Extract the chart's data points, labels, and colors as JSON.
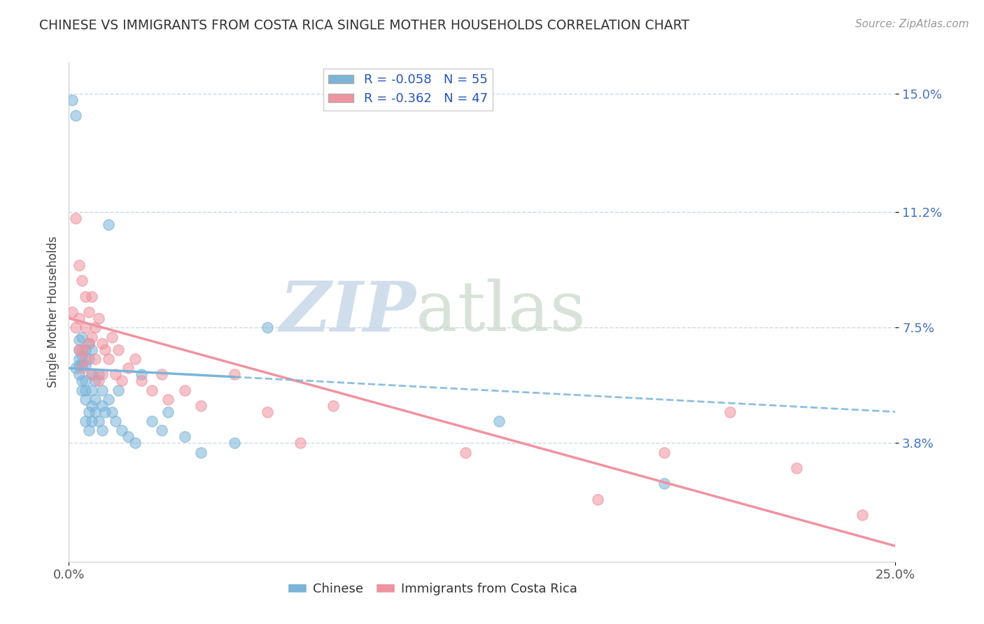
{
  "title": "CHINESE VS IMMIGRANTS FROM COSTA RICA SINGLE MOTHER HOUSEHOLDS CORRELATION CHART",
  "source_text": "Source: ZipAtlas.com",
  "ylabel": "Single Mother Households",
  "xlim": [
    0.0,
    0.25
  ],
  "ylim": [
    0.0,
    0.16
  ],
  "x_tick_labels": [
    "0.0%",
    "25.0%"
  ],
  "y_tick_positions": [
    0.038,
    0.075,
    0.112,
    0.15
  ],
  "y_tick_labels": [
    "3.8%",
    "7.5%",
    "11.2%",
    "15.0%"
  ],
  "chinese_color": "#7ab4d8",
  "costa_rica_color": "#f093a0",
  "chinese_R": -0.058,
  "chinese_N": 55,
  "costa_rica_R": -0.362,
  "costa_rica_N": 47,
  "watermark_zip_color": "#c8d8e8",
  "watermark_atlas_color": "#c8d8c8",
  "background_color": "#ffffff",
  "grid_color": "#c8d4e0",
  "chinese_x": [
    0.001,
    0.002,
    0.002,
    0.003,
    0.003,
    0.003,
    0.003,
    0.003,
    0.004,
    0.004,
    0.004,
    0.004,
    0.004,
    0.005,
    0.005,
    0.005,
    0.005,
    0.005,
    0.005,
    0.006,
    0.006,
    0.006,
    0.006,
    0.007,
    0.007,
    0.007,
    0.007,
    0.007,
    0.008,
    0.008,
    0.008,
    0.009,
    0.009,
    0.01,
    0.01,
    0.01,
    0.011,
    0.012,
    0.012,
    0.013,
    0.014,
    0.015,
    0.016,
    0.018,
    0.02,
    0.022,
    0.025,
    0.028,
    0.03,
    0.035,
    0.04,
    0.05,
    0.06,
    0.13,
    0.18
  ],
  "chinese_y": [
    0.148,
    0.062,
    0.143,
    0.068,
    0.071,
    0.063,
    0.065,
    0.06,
    0.072,
    0.063,
    0.058,
    0.055,
    0.066,
    0.068,
    0.055,
    0.052,
    0.063,
    0.058,
    0.045,
    0.07,
    0.065,
    0.048,
    0.042,
    0.068,
    0.06,
    0.055,
    0.05,
    0.045,
    0.058,
    0.052,
    0.048,
    0.06,
    0.045,
    0.055,
    0.05,
    0.042,
    0.048,
    0.108,
    0.052,
    0.048,
    0.045,
    0.055,
    0.042,
    0.04,
    0.038,
    0.06,
    0.045,
    0.042,
    0.048,
    0.04,
    0.035,
    0.038,
    0.075,
    0.045,
    0.025
  ],
  "costa_rica_x": [
    0.001,
    0.002,
    0.002,
    0.003,
    0.003,
    0.003,
    0.004,
    0.004,
    0.004,
    0.005,
    0.005,
    0.005,
    0.006,
    0.006,
    0.007,
    0.007,
    0.007,
    0.008,
    0.008,
    0.009,
    0.009,
    0.01,
    0.01,
    0.011,
    0.012,
    0.013,
    0.014,
    0.015,
    0.016,
    0.018,
    0.02,
    0.022,
    0.025,
    0.028,
    0.03,
    0.035,
    0.04,
    0.05,
    0.06,
    0.07,
    0.08,
    0.12,
    0.16,
    0.18,
    0.2,
    0.22,
    0.24
  ],
  "costa_rica_y": [
    0.08,
    0.11,
    0.075,
    0.095,
    0.068,
    0.078,
    0.09,
    0.068,
    0.062,
    0.085,
    0.075,
    0.065,
    0.08,
    0.07,
    0.085,
    0.072,
    0.06,
    0.075,
    0.065,
    0.078,
    0.058,
    0.07,
    0.06,
    0.068,
    0.065,
    0.072,
    0.06,
    0.068,
    0.058,
    0.062,
    0.065,
    0.058,
    0.055,
    0.06,
    0.052,
    0.055,
    0.05,
    0.06,
    0.048,
    0.038,
    0.05,
    0.035,
    0.02,
    0.035,
    0.048,
    0.03,
    0.015
  ],
  "line_chinese_x0": 0.0,
  "line_chinese_x1": 0.25,
  "line_chinese_y0": 0.062,
  "line_chinese_y1": 0.048,
  "line_cr_x0": 0.0,
  "line_cr_x1": 0.25,
  "line_cr_y0": 0.078,
  "line_cr_y1": 0.005
}
